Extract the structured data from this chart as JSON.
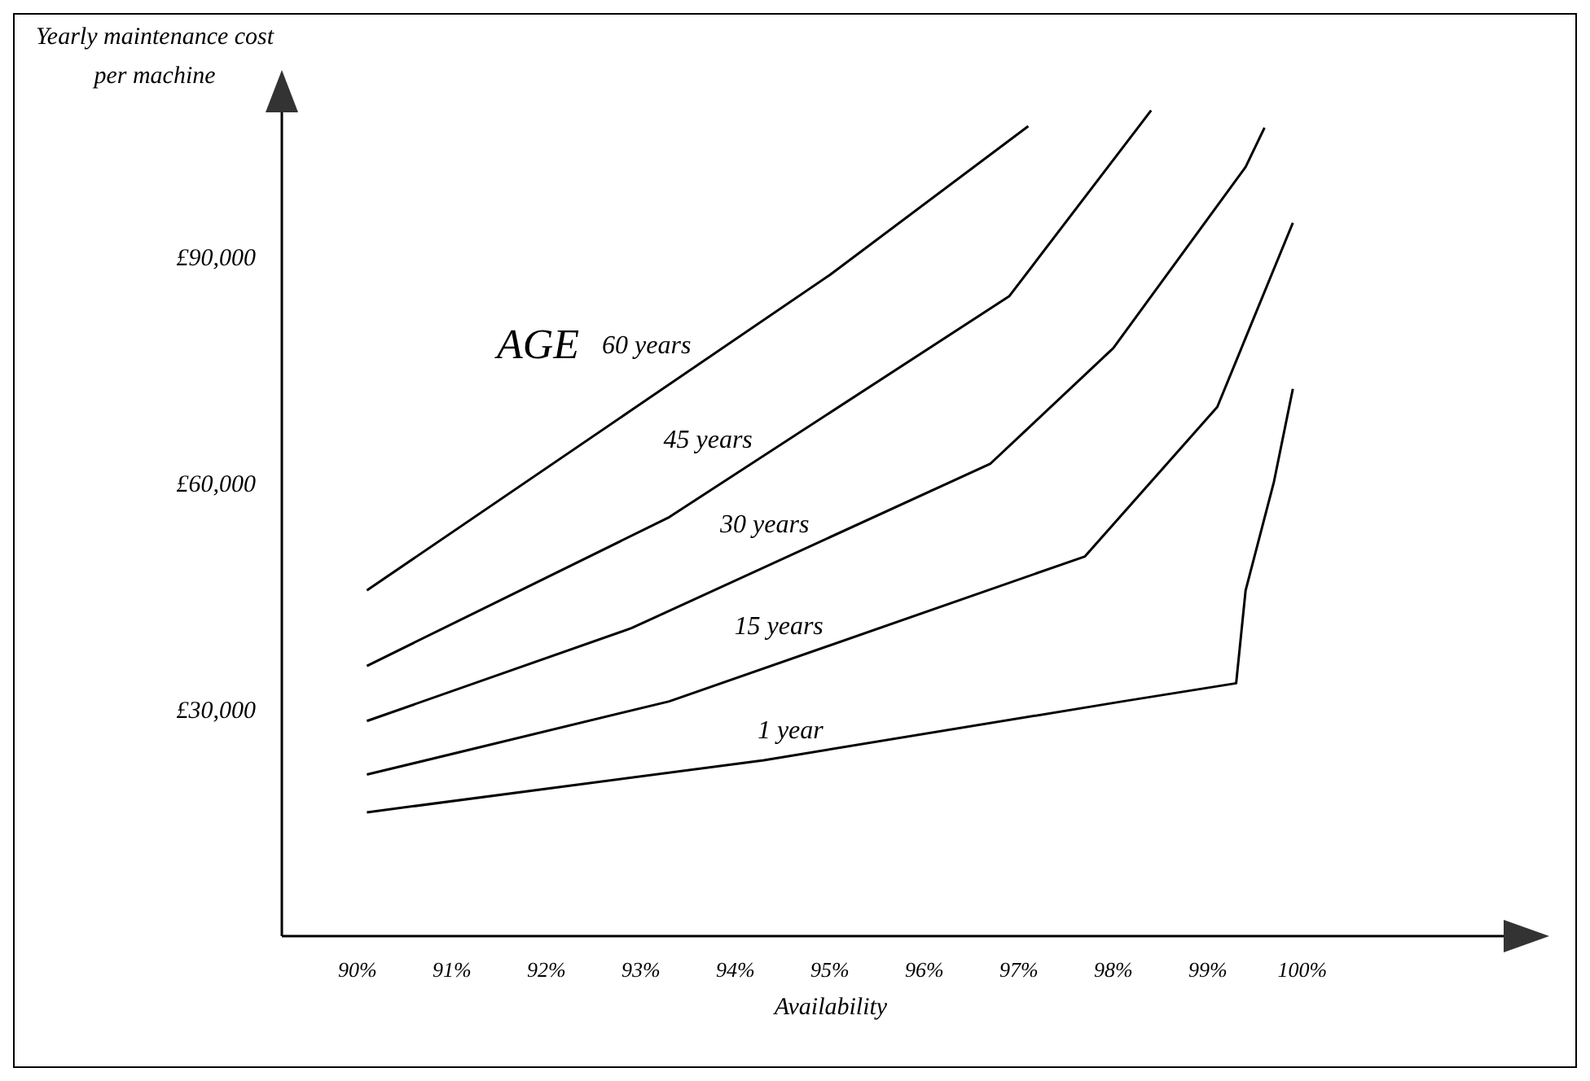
{
  "chart_data": {
    "type": "line",
    "ylabel": "Yearly maintenance cost per machine",
    "xlabel": "Availability",
    "legend_title": "AGE",
    "xlim": [
      89.2,
      102.2
    ],
    "ylim": [
      0,
      110000
    ],
    "xticks": [
      {
        "value": 90,
        "label": "90%"
      },
      {
        "value": 91,
        "label": "91%"
      },
      {
        "value": 92,
        "label": "92%"
      },
      {
        "value": 93,
        "label": "93%"
      },
      {
        "value": 94,
        "label": "94%"
      },
      {
        "value": 95,
        "label": "95%"
      },
      {
        "value": 96,
        "label": "96%"
      },
      {
        "value": 97,
        "label": "97%"
      },
      {
        "value": 98,
        "label": "98%"
      },
      {
        "value": 99,
        "label": "99%"
      },
      {
        "value": 100,
        "label": "100%"
      }
    ],
    "yticks": [
      {
        "value": 30000,
        "label": "£30,000"
      },
      {
        "value": 60000,
        "label": "£60,000"
      },
      {
        "value": 90000,
        "label": "£90,000"
      }
    ],
    "grid": false,
    "legend": false,
    "marker": "none",
    "line_style": "solid",
    "series": [
      {
        "name": "60 years",
        "color": "#000000",
        "x": [
          90.1,
          95,
          97.1
        ],
        "values": [
          45800,
          87600,
          107300
        ]
      },
      {
        "name": "45 years",
        "color": "#000000",
        "x": [
          90.1,
          93.3,
          96.9,
          98.4
        ],
        "values": [
          35800,
          55500,
          84800,
          109400
        ]
      },
      {
        "name": "30 years",
        "color": "#000000",
        "x": [
          90.1,
          92.9,
          96.7,
          98,
          99.4,
          99.6
        ],
        "values": [
          28500,
          40800,
          62600,
          77900,
          101900,
          107100
        ]
      },
      {
        "name": "15 years",
        "color": "#000000",
        "x": [
          90.1,
          93.3,
          97.7,
          99.1,
          99.9
        ],
        "values": [
          21400,
          31100,
          50300,
          70100,
          94500
        ]
      },
      {
        "name": "1 year",
        "color": "#000000",
        "x": [
          90.1,
          94.3,
          98.1,
          99.3,
          99.4,
          99.7,
          99.9
        ],
        "values": [
          16400,
          23300,
          31100,
          33500,
          45800,
          60200,
          72500
        ]
      }
    ]
  }
}
